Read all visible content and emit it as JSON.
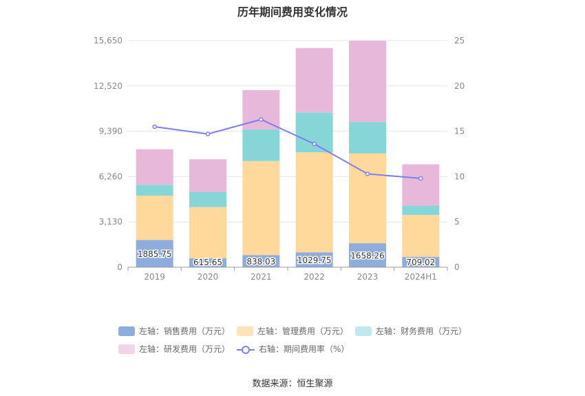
{
  "chart_data": {
    "type": "bar",
    "title": "历年期间费用变化情况",
    "categories": [
      "2019",
      "2020",
      "2021",
      "2022",
      "2023",
      "2024H1"
    ],
    "left_axis": {
      "min": 0,
      "max": 15650,
      "ticks": [
        "0",
        "3,130",
        "6,260",
        "9,390",
        "12,520",
        "15,650"
      ]
    },
    "right_axis": {
      "min": 0,
      "max": 25,
      "ticks": [
        "0",
        "5",
        "10",
        "15",
        "20",
        "25"
      ]
    },
    "series": [
      {
        "name": "左轴：销售费用（万元）",
        "kind": "bar",
        "color": "#8eacdc",
        "values": [
          1885.75,
          615.65,
          838.03,
          1029.75,
          1658.26,
          709.02
        ],
        "labels": [
          "1885.75",
          "615.65",
          "838.03",
          "1029.75",
          "1658.26",
          "709.02"
        ]
      },
      {
        "name": "左轴：管理费用（万元）",
        "kind": "bar",
        "color": "#ffd89c",
        "values": [
          3060,
          3540,
          6500,
          6900,
          6200,
          2900
        ]
      },
      {
        "name": "左轴：财务费用（万元）",
        "kind": "bar",
        "color": "#86d6d8",
        "values": [
          750,
          1050,
          2180,
          2760,
          2170,
          650
        ]
      },
      {
        "name": "左轴：研发费用（万元）",
        "kind": "bar",
        "color": "#e8b8da",
        "values": [
          2450,
          2250,
          2720,
          4450,
          5620,
          2850
        ]
      },
      {
        "name": "右轴：期间费用率（%）",
        "kind": "line",
        "color": "#7b7ef0",
        "values": [
          15.5,
          14.7,
          16.3,
          13.6,
          10.3,
          9.8
        ]
      }
    ],
    "legend_colors": [
      "#8eacdc",
      "#ffe3b8",
      "#bfe9ea",
      "#f2d4e8"
    ],
    "grid": true,
    "legend_position": "bottom"
  },
  "source": "数据来源：恒生聚源"
}
